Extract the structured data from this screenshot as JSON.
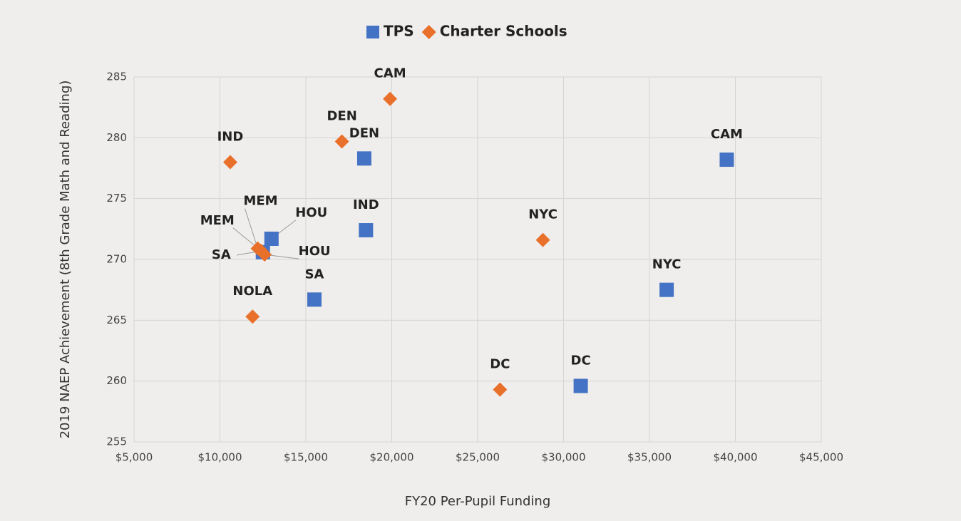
{
  "chart_data": {
    "type": "scatter",
    "x_label": "FY20 Per-Pupil Funding",
    "y_label": "2019 NAEP Achievement (8th Grade Math and Reading)",
    "xlim": [
      5000,
      45000
    ],
    "xticks": [
      {
        "value": 5000,
        "label": "$5,000"
      },
      {
        "value": 10000,
        "label": "$10,000"
      },
      {
        "value": 15000,
        "label": "$15,000"
      },
      {
        "value": 20000,
        "label": "$20,000"
      },
      {
        "value": 25000,
        "label": "$25,000"
      },
      {
        "value": 30000,
        "label": "$30,000"
      },
      {
        "value": 35000,
        "label": "$35,000"
      },
      {
        "value": 40000,
        "label": "$40,000"
      },
      {
        "value": 45000,
        "label": "$45,000"
      }
    ],
    "ylim": [
      255,
      285
    ],
    "yticks": [
      255,
      260,
      265,
      270,
      275,
      280,
      285
    ],
    "grid": true,
    "legend": "top",
    "series": [
      {
        "name": "TPS",
        "color": "#4472c4",
        "marker": "square",
        "labels": [
          "DEN",
          "CAM",
          "IND",
          "HOU",
          "MEM",
          "SA",
          "NYC",
          "DC"
        ],
        "x": [
          18400,
          39500,
          18500,
          13000,
          12500,
          15500,
          36000,
          31000
        ],
        "values": [
          278.3,
          278.2,
          272.4,
          271.7,
          270.6,
          266.7,
          267.5,
          259.6
        ]
      },
      {
        "name": "Charter Schools",
        "color": "#e8702a",
        "marker": "diamond",
        "labels": [
          "IND",
          "DEN",
          "CAM",
          "NYC",
          "DC",
          "NOLA",
          "MEM",
          "HOU",
          "SA"
        ],
        "x": [
          10600,
          17100,
          19900,
          28800,
          26300,
          11900,
          12200,
          12600,
          12400
        ],
        "values": [
          278.0,
          279.7,
          283.2,
          271.6,
          259.3,
          265.3,
          270.9,
          270.4,
          270.7
        ]
      }
    ]
  }
}
